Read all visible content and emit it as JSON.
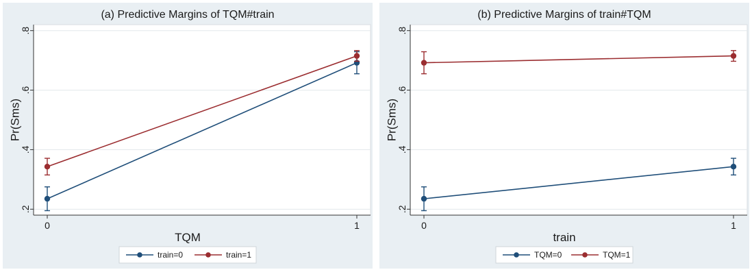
{
  "chart_data": [
    {
      "type": "line",
      "title": "(a) Predictive Margins of TQM#train",
      "xlabel": "TQM",
      "ylabel": "Pr(Sms)",
      "x": [
        0,
        1
      ],
      "x_tick_labels": [
        "0",
        "1"
      ],
      "y_tick_labels": [
        ".2",
        ".4",
        ".6",
        ".8"
      ],
      "y_ticks": [
        0.2,
        0.4,
        0.6,
        0.8
      ],
      "xlim": [
        0,
        1
      ],
      "ylim": [
        0.18,
        0.82
      ],
      "grid": "horizontal",
      "legend_position": "bottom",
      "series": [
        {
          "name": "train=0",
          "color": "#1f4e79",
          "values": [
            0.235,
            0.692
          ],
          "ci_low": [
            0.195,
            0.655
          ],
          "ci_high": [
            0.275,
            0.729
          ]
        },
        {
          "name": "train=1",
          "color": "#9b2d30",
          "values": [
            0.343,
            0.715
          ],
          "ci_low": [
            0.315,
            0.697
          ],
          "ci_high": [
            0.371,
            0.733
          ]
        }
      ]
    },
    {
      "type": "line",
      "title": "(b) Predictive Margins of train#TQM",
      "xlabel": "train",
      "ylabel": "Pr(Sms)",
      "x": [
        0,
        1
      ],
      "x_tick_labels": [
        "0",
        "1"
      ],
      "y_tick_labels": [
        ".2",
        ".4",
        ".6",
        ".8"
      ],
      "y_ticks": [
        0.2,
        0.4,
        0.6,
        0.8
      ],
      "xlim": [
        0,
        1
      ],
      "ylim": [
        0.18,
        0.82
      ],
      "grid": "horizontal",
      "legend_position": "bottom",
      "series": [
        {
          "name": "TQM=0",
          "color": "#1f4e79",
          "values": [
            0.235,
            0.343
          ],
          "ci_low": [
            0.195,
            0.315
          ],
          "ci_high": [
            0.275,
            0.371
          ]
        },
        {
          "name": "TQM=1",
          "color": "#9b2d30",
          "values": [
            0.692,
            0.715
          ],
          "ci_low": [
            0.655,
            0.697
          ],
          "ci_high": [
            0.729,
            0.733
          ]
        }
      ]
    }
  ]
}
